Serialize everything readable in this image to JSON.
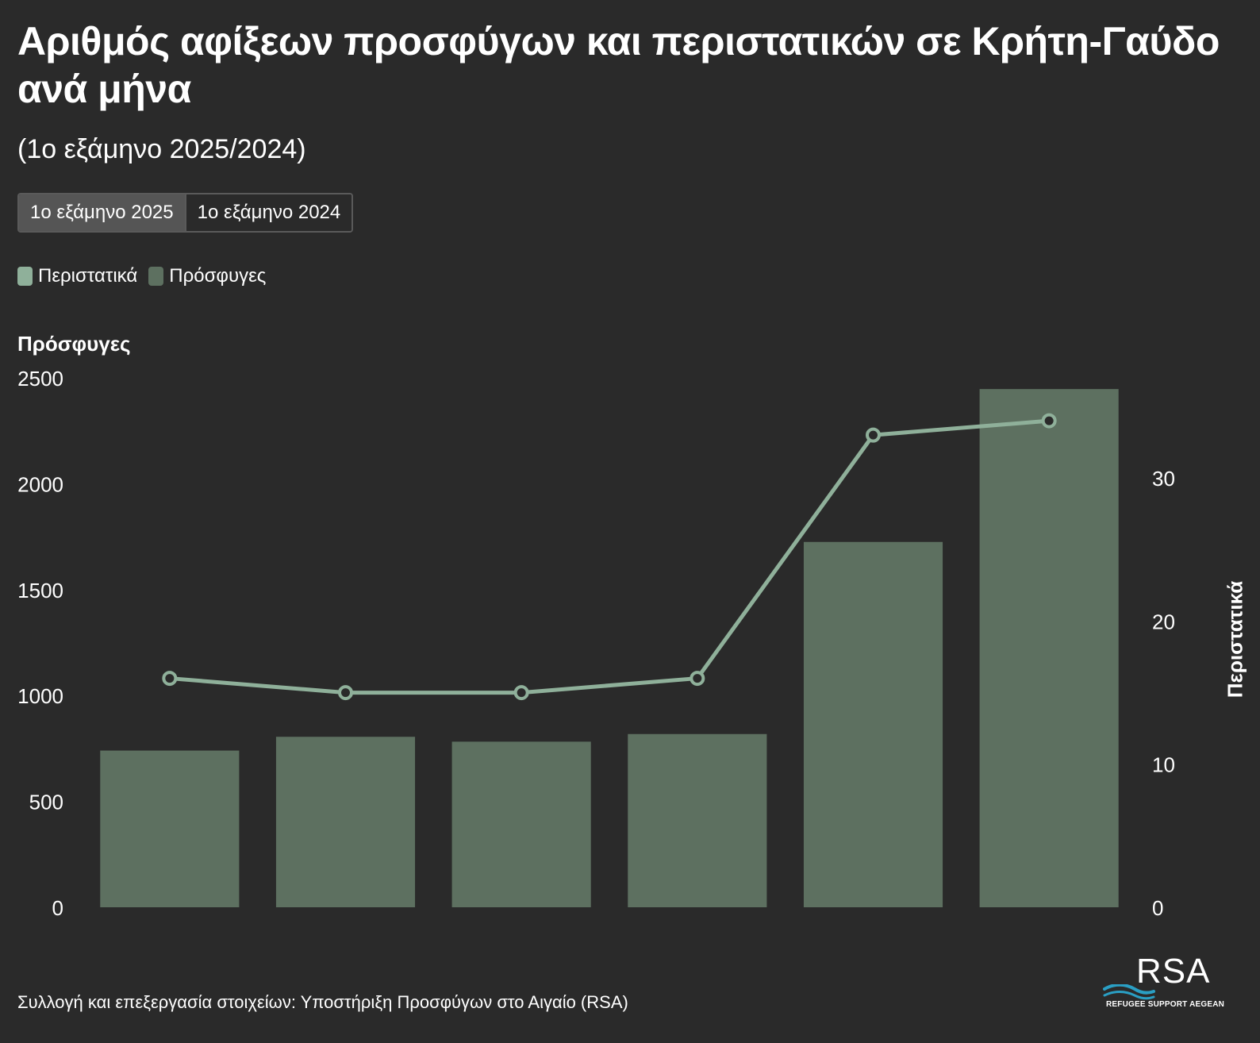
{
  "title": "Αριθμός αφίξεων προσφύγων και περιστατικών σε Κρήτη-Γαύδο ανά μήνα",
  "subtitle": "(1ο εξάμηνο 2025/2024)",
  "tabs": [
    {
      "label": "1ο εξάμηνο 2025",
      "active": true
    },
    {
      "label": "1ο εξάμηνο 2024",
      "active": false
    }
  ],
  "legend": [
    {
      "label": "Περιστατικά",
      "color": "#8fb09a"
    },
    {
      "label": "Πρόσφυγες",
      "color": "#5d7060"
    }
  ],
  "footer": "Συλλογή και επεξεργασία στοιχείων: Υποστήριξη Προσφύγων στο Αιγαίο (RSA)",
  "logo": {
    "text": "RSA",
    "tagline": "REFUGEE SUPPORT AEGEAN",
    "wave_color": "#2a9fc4"
  },
  "chart_data": {
    "type": "bar",
    "title": "Αριθμός αφίξεων προσφύγων και περιστατικών σε Κρήτη-Γαύδο ανά μήνα",
    "subtitle": "(1ο εξάμηνο 2025/2024)",
    "ylabel": "Πρόσφυγες",
    "y2label": "Περιστατικά",
    "ylim": [
      0,
      2500
    ],
    "y2lim": [
      0,
      37
    ],
    "yticks": [
      0,
      500,
      1000,
      1500,
      2000,
      2500
    ],
    "y2ticks": [
      0,
      10,
      20,
      30
    ],
    "grid": false,
    "legend_position": "top-left",
    "series": [
      {
        "name": "Πρόσφυγες",
        "type": "bar",
        "axis": "left",
        "color": "#5d7060",
        "values": [
          740,
          805,
          782,
          818,
          1725,
          2447
        ]
      },
      {
        "name": "Περιστατικά",
        "type": "line",
        "axis": "right",
        "color": "#8fb09a",
        "values": [
          16,
          15,
          15,
          16,
          33,
          34
        ]
      }
    ]
  }
}
